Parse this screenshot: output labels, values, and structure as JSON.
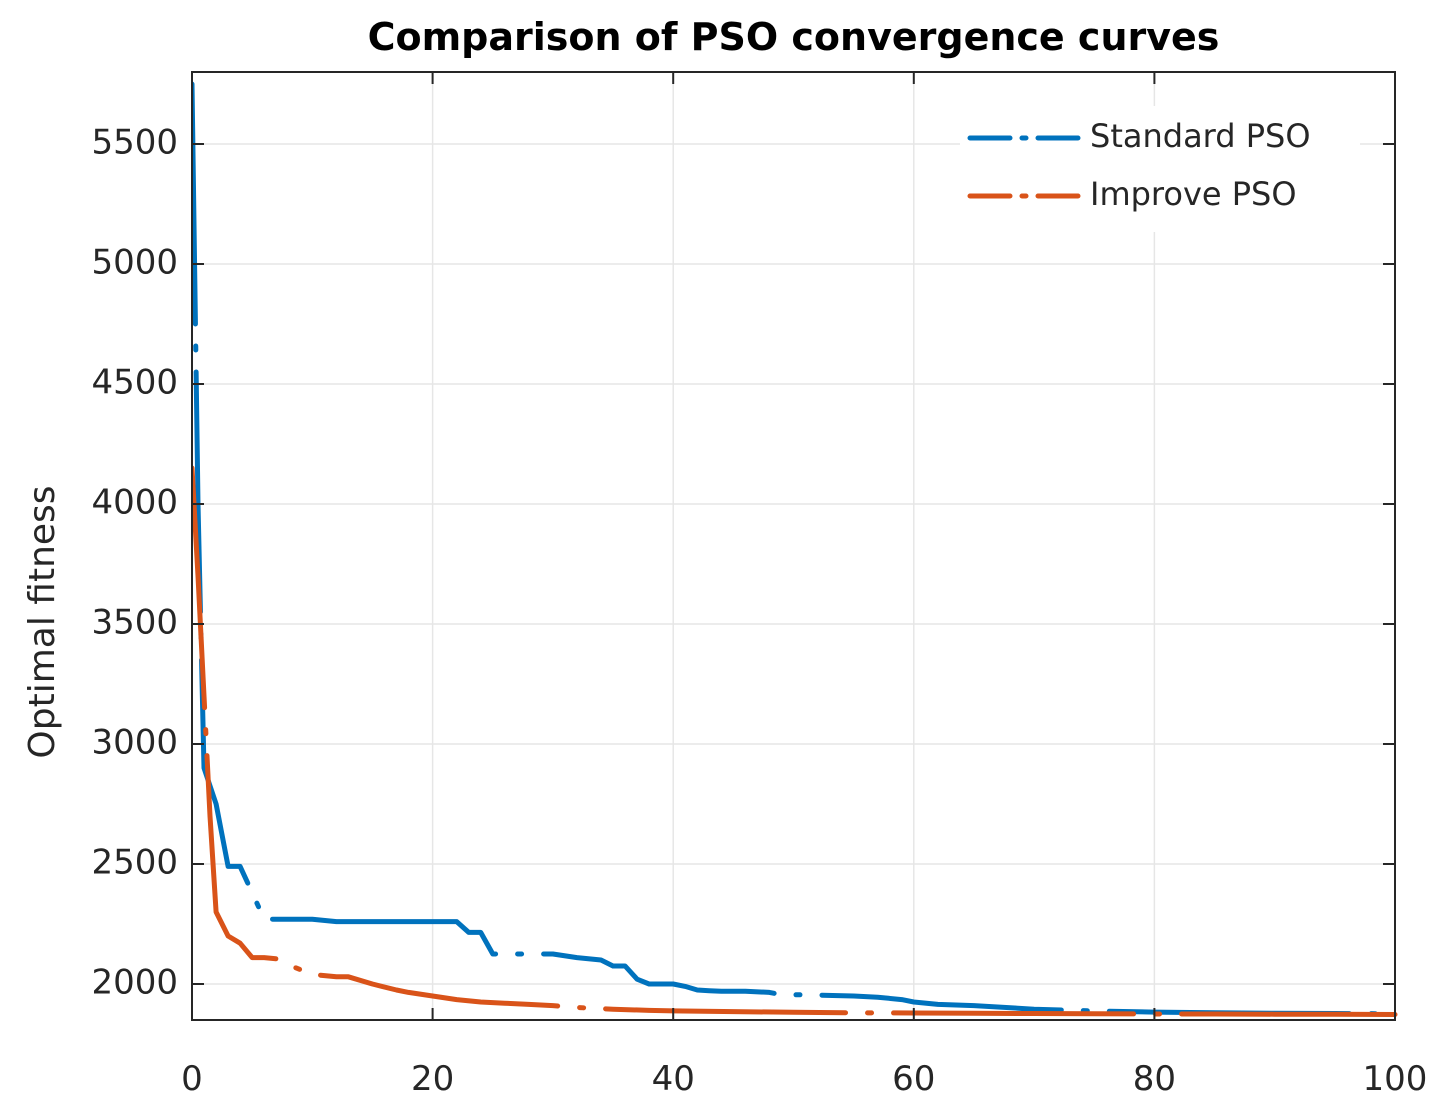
{
  "chart_data": {
    "type": "line",
    "title": "Comparison of PSO convergence curves",
    "xlabel": "",
    "ylabel": "Optimal fitness",
    "xlim": [
      0,
      100
    ],
    "ylim": [
      1850,
      5800
    ],
    "xticks": [
      0,
      20,
      40,
      60,
      80,
      100
    ],
    "yticks": [
      2000,
      2500,
      3000,
      3500,
      4000,
      4500,
      5000,
      5500
    ],
    "grid": true,
    "legend_position": "top-right",
    "series": [
      {
        "name": "Standard PSO",
        "color": "#0072BD",
        "linestyle": "dash-dot",
        "x": [
          0,
          0.5,
          1,
          2,
          3,
          4,
          5,
          6,
          7,
          8,
          10,
          12,
          15,
          18,
          20,
          22,
          23,
          24,
          25,
          27,
          30,
          32,
          34,
          35,
          36,
          37,
          38,
          39,
          40,
          41,
          42,
          43,
          44,
          46,
          48,
          49,
          51,
          55,
          57,
          59,
          60,
          62,
          65,
          70,
          75,
          80,
          85,
          90,
          95,
          100
        ],
        "y": [
          5750,
          4000,
          2900,
          2750,
          2490,
          2490,
          2380,
          2270,
          2270,
          2270,
          2270,
          2260,
          2260,
          2260,
          2260,
          2260,
          2215,
          2215,
          2125,
          2125,
          2125,
          2110,
          2100,
          2075,
          2075,
          2020,
          2000,
          2000,
          2000,
          1990,
          1975,
          1972,
          1970,
          1970,
          1965,
          1955,
          1955,
          1950,
          1945,
          1935,
          1925,
          1915,
          1910,
          1895,
          1888,
          1883,
          1880,
          1878,
          1877,
          1876
        ]
      },
      {
        "name": "Improve PSO",
        "color": "#D95319",
        "linestyle": "dash-dot",
        "x": [
          0,
          0.5,
          1,
          1.5,
          2,
          3,
          4,
          5,
          6,
          7,
          8,
          9,
          10,
          12,
          13,
          15,
          17,
          18,
          20,
          22,
          24,
          26,
          28,
          30,
          32,
          35,
          38,
          40,
          45,
          50,
          55,
          60,
          65,
          70,
          75,
          80,
          85,
          90,
          95,
          100
        ],
        "y": [
          4150,
          3700,
          3200,
          2700,
          2300,
          2200,
          2170,
          2110,
          2110,
          2105,
          2080,
          2060,
          2040,
          2030,
          2030,
          2000,
          1975,
          1965,
          1950,
          1935,
          1925,
          1920,
          1915,
          1910,
          1902,
          1895,
          1890,
          1888,
          1885,
          1882,
          1880,
          1879,
          1878,
          1877,
          1876,
          1875,
          1875,
          1874,
          1874,
          1873
        ]
      }
    ]
  }
}
